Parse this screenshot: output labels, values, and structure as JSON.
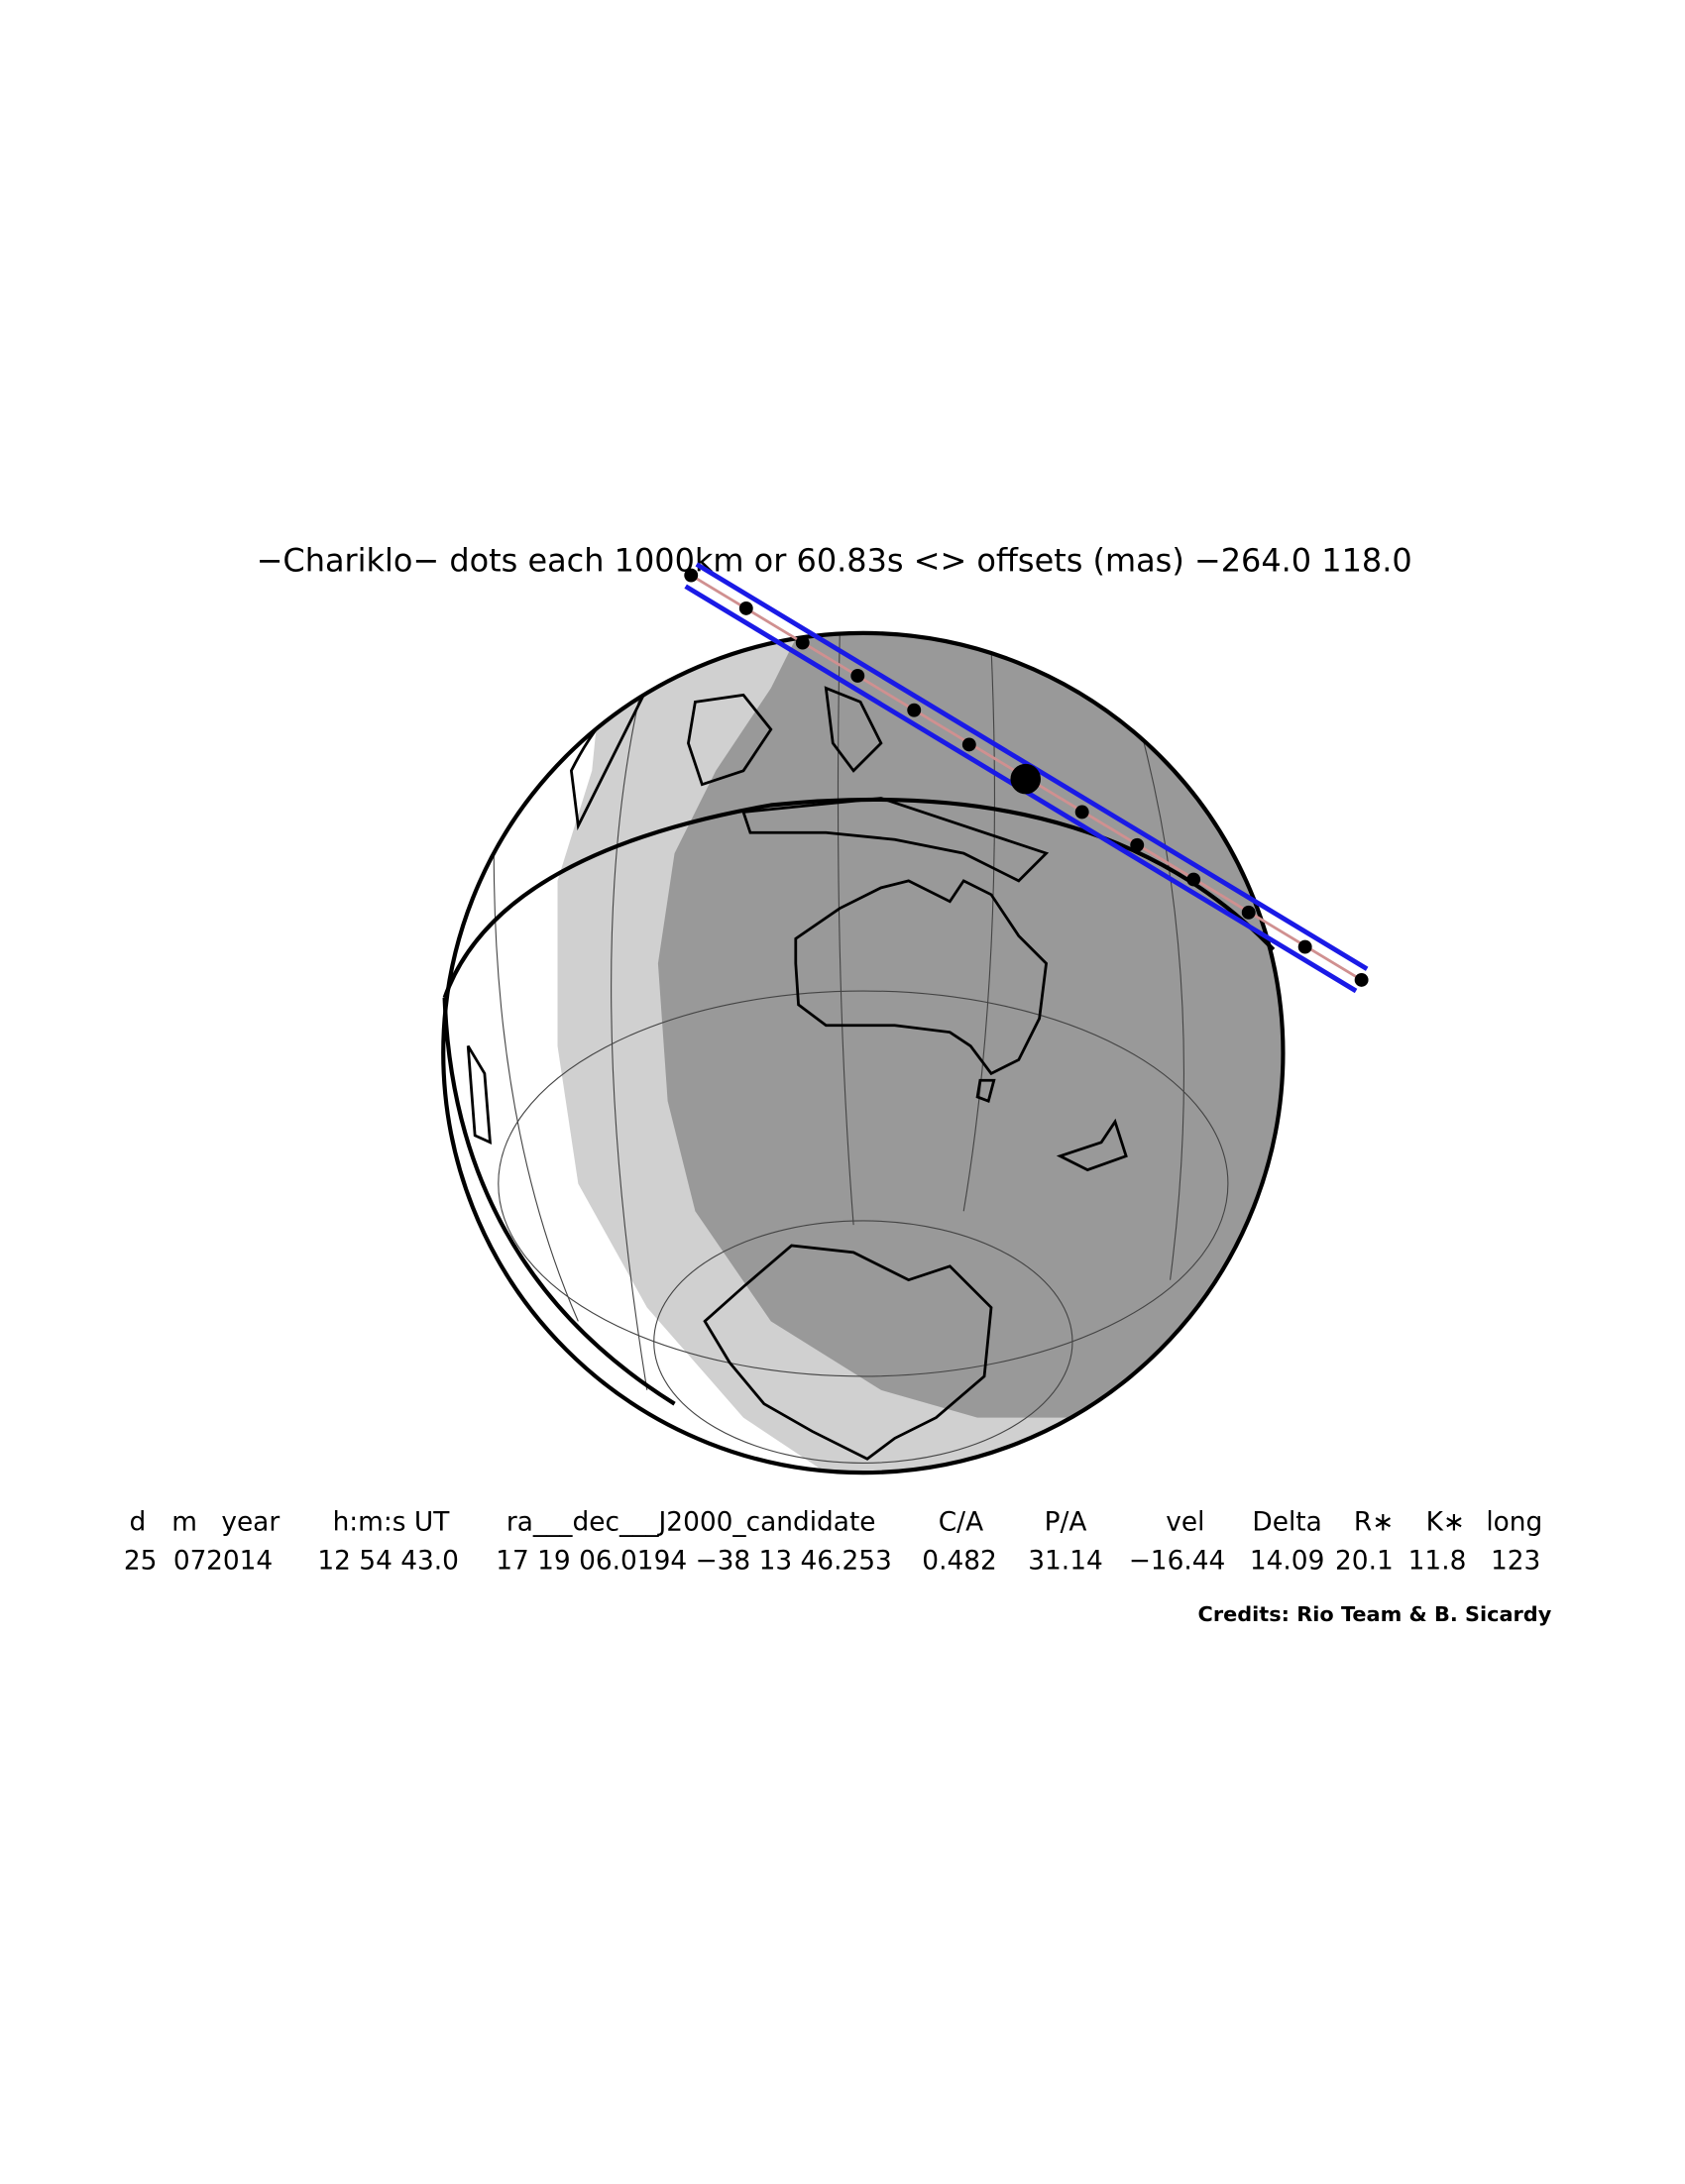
{
  "title": "−Chariklo− dots each 1000km or 60.83s <> offsets (mas) −264.0  118.0",
  "table": {
    "headers": [
      "d",
      "m",
      "year",
      "h:m:s UT",
      "ra___dec___J2000_candidate",
      "C/A",
      "P/A",
      "vel",
      "Delta",
      "R∗",
      "K∗",
      "long"
    ],
    "rows": [
      [
        "25",
        "07",
        "2014",
        "12 54 43.0",
        "17 19 06.0194 −38 13 46.253",
        "0.482",
        "31.14",
        "−16.44",
        "14.09",
        "20.1",
        "11.8",
        "123"
      ]
    ]
  },
  "credits": "Credits: Rio Team & B. Sicardy"
}
